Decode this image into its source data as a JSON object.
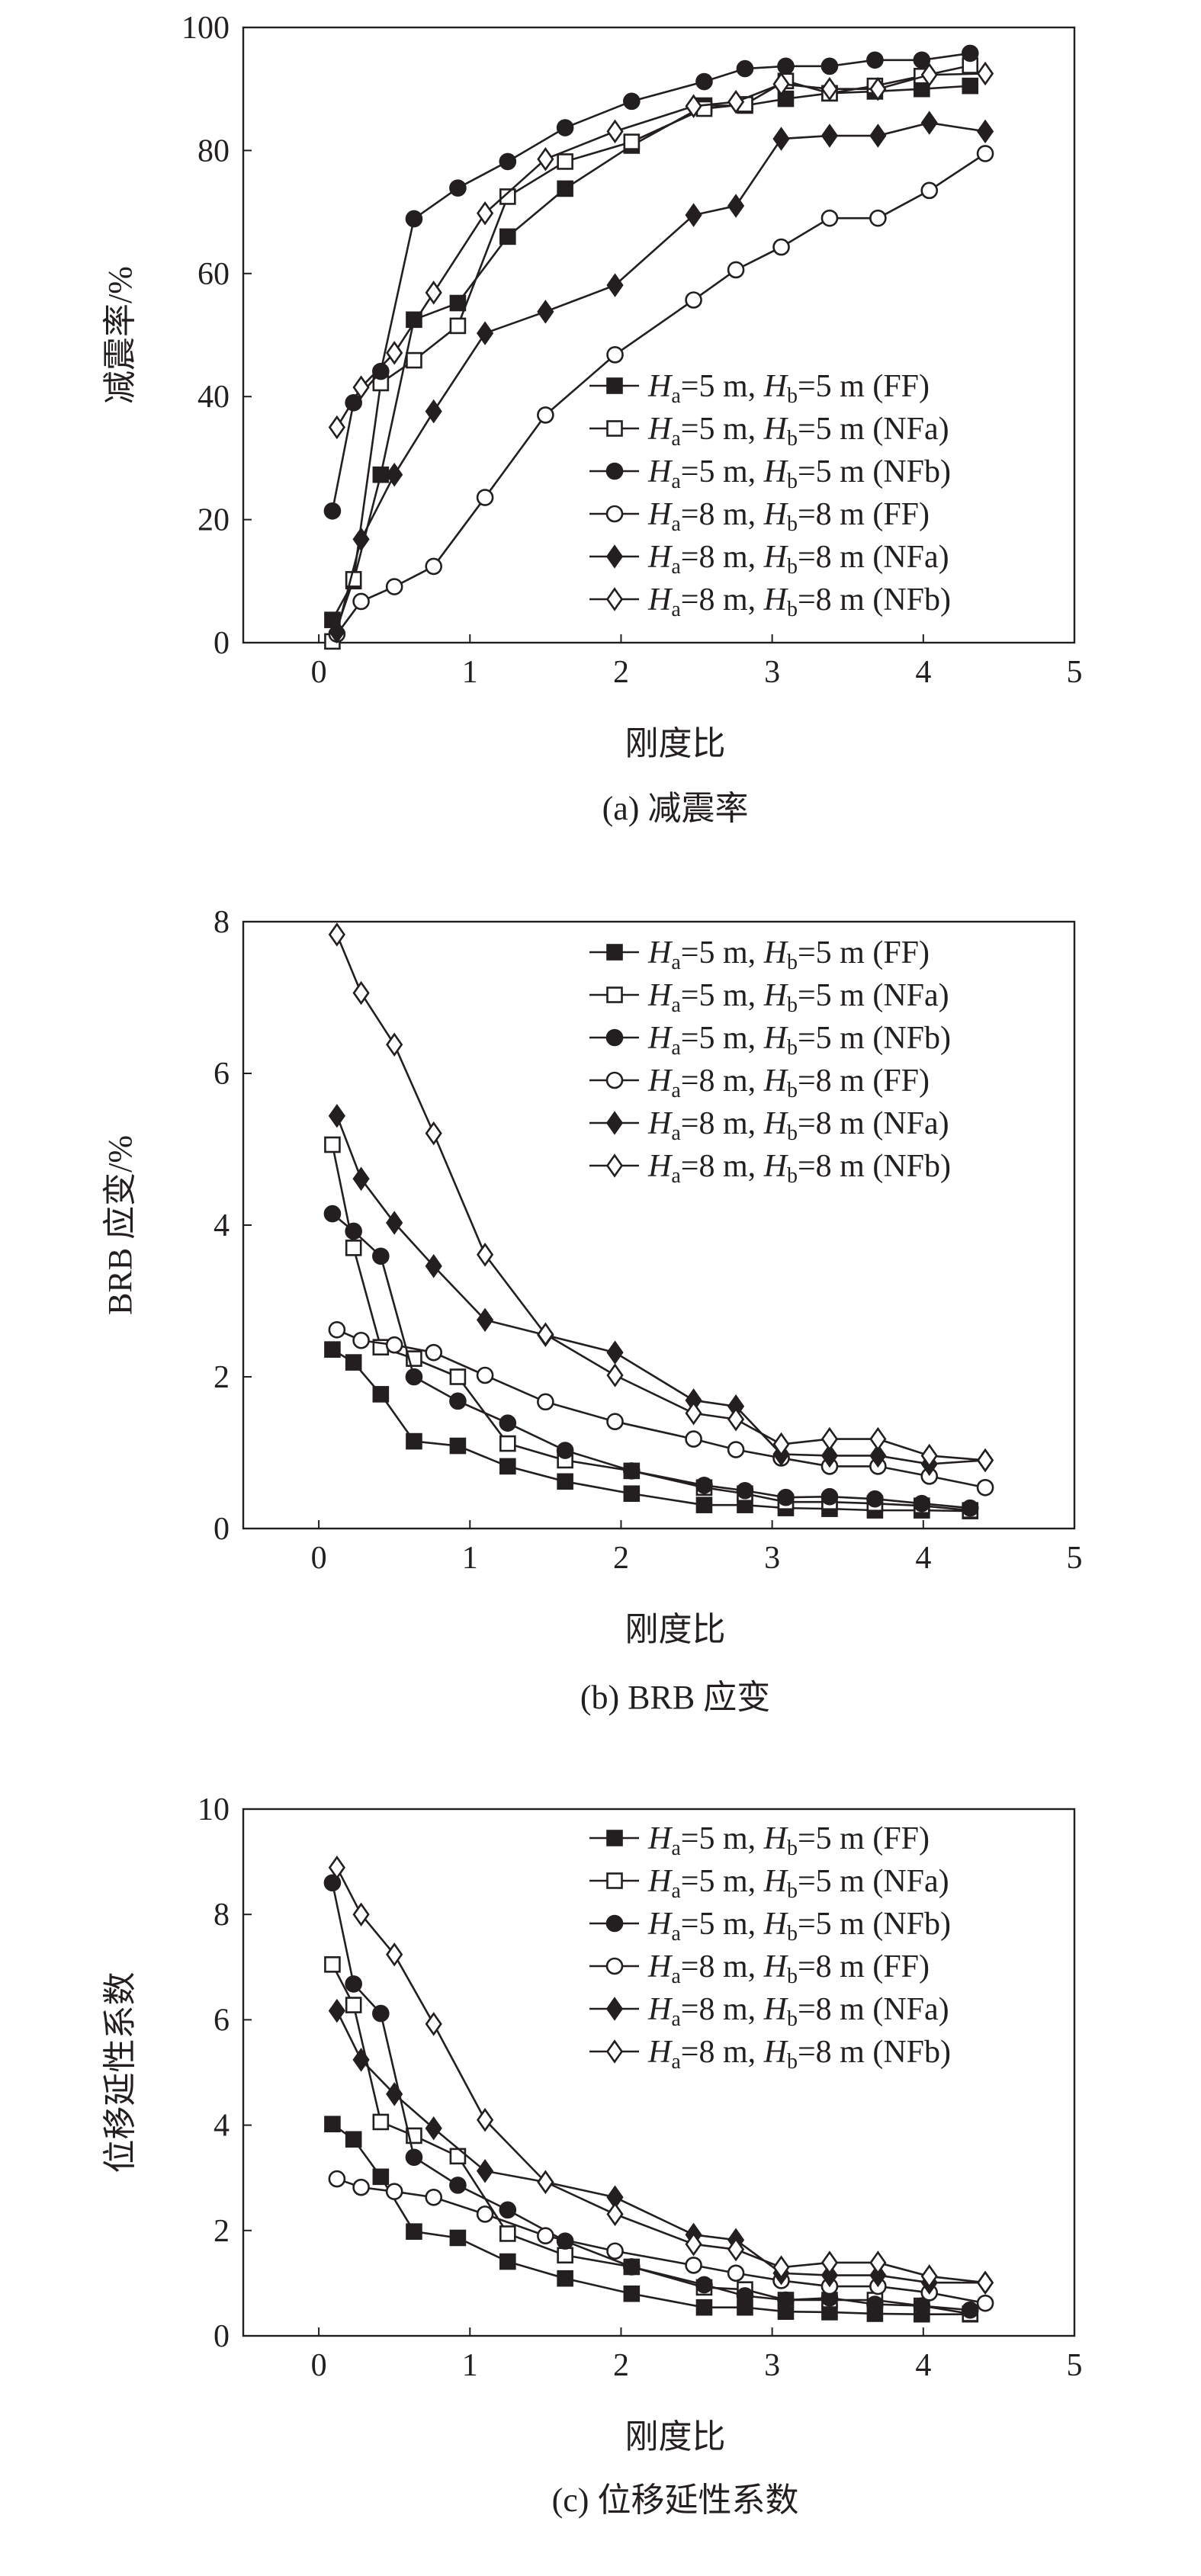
{
  "colors": {
    "ink": "#231f20",
    "background": "#ffffff"
  },
  "legend_labels": [
    "Ha=5 m, Hb=5 m (FF)",
    "Ha=5 m, Hb=5 m (NFa)",
    "Ha=5 m, Hb=5 m (NFb)",
    "Ha=8 m, Hb=8 m (FF)",
    "Ha=8 m, Hb=8 m (NFa)",
    "Ha=8 m, Hb=8 m (NFb)"
  ],
  "chart_data": [
    {
      "type": "line",
      "caption": "(a) 减震率",
      "xlabel": "刚度比",
      "ylabel": "减震率/%",
      "xlim": [
        -0.5,
        5
      ],
      "ylim": [
        0,
        100
      ],
      "xticks": [
        0,
        1,
        2,
        3,
        4,
        5
      ],
      "yticks": [
        0,
        20,
        40,
        60,
        80,
        100
      ],
      "grid": false,
      "legend_position": "bottom-right",
      "x5": [
        0.09,
        0.23,
        0.41,
        0.63,
        0.92,
        1.25,
        1.63,
        2.07,
        2.55,
        2.82,
        3.09,
        3.38,
        3.68,
        3.99,
        4.31
      ],
      "x8": [
        0.12,
        0.28,
        0.5,
        0.76,
        1.1,
        1.5,
        1.96,
        2.48,
        2.76,
        3.06,
        3.38,
        3.7,
        4.04,
        4.41
      ],
      "series": [
        {
          "name": "Ha=5 m, Hb=5 m (FF)",
          "marker": "square-filled",
          "xset": "x5",
          "values": [
            3.7,
            10,
            27.3,
            52.5,
            55.2,
            66,
            73.8,
            80.8,
            87.3,
            87.3,
            88.4,
            89.3,
            89.6,
            90,
            90.5
          ]
        },
        {
          "name": "Ha=5 m, Hb=5 m (NFa)",
          "marker": "square-open",
          "xset": "x5",
          "values": [
            0.2,
            10.3,
            42.2,
            45.9,
            51.5,
            72.5,
            78.2,
            81.4,
            86.8,
            87.5,
            91.3,
            89.3,
            90.5,
            92.1,
            93.8
          ]
        },
        {
          "name": "Ha=5 m, Hb=5 m (NFb)",
          "marker": "circle-filled",
          "xset": "x5",
          "values": [
            21.4,
            39,
            44.1,
            68.9,
            73.9,
            78.2,
            83.7,
            88,
            91.2,
            93.3,
            93.7,
            93.7,
            94.7,
            94.7,
            95.8
          ]
        },
        {
          "name": "Ha=8 m, Hb=8 m (FF)",
          "marker": "circle-open",
          "xset": "x8",
          "values": [
            1.4,
            6.7,
            9.1,
            12.4,
            23.6,
            37,
            46.8,
            55.7,
            60.6,
            64.3,
            69,
            69,
            73.5,
            79.5
          ]
        },
        {
          "name": "Ha=8 m, Hb=8 m (NFa)",
          "marker": "diamond-filled",
          "xset": "x8",
          "values": [
            1.8,
            16.8,
            27.3,
            37.6,
            50.3,
            53.8,
            58.1,
            69.5,
            71,
            81.9,
            82.4,
            82.4,
            84.5,
            83.1
          ]
        },
        {
          "name": "Ha=8 m, Hb=8 m (NFb)",
          "marker": "diamond-open",
          "xset": "x8",
          "values": [
            35,
            41.5,
            47.1,
            56.9,
            69.8,
            78.6,
            83.1,
            87.2,
            87.9,
            90.8,
            90,
            90,
            92.3,
            92.5
          ]
        }
      ]
    },
    {
      "type": "line",
      "caption": "(b) BRB 应变",
      "xlabel": "刚度比",
      "ylabel": "BRB 应变/%",
      "xlim": [
        -0.5,
        5
      ],
      "ylim": [
        0,
        8
      ],
      "xticks": [
        0,
        1,
        2,
        3,
        4,
        5
      ],
      "yticks": [
        0,
        2,
        4,
        6,
        8
      ],
      "grid": false,
      "legend_position": "top-right",
      "x5": [
        0.09,
        0.23,
        0.41,
        0.63,
        0.92,
        1.25,
        1.63,
        2.07,
        2.55,
        2.82,
        3.09,
        3.38,
        3.68,
        3.99,
        4.31
      ],
      "x8": [
        0.12,
        0.28,
        0.5,
        0.76,
        1.1,
        1.5,
        1.96,
        2.48,
        2.76,
        3.06,
        3.38,
        3.7,
        4.04,
        4.41
      ],
      "series": [
        {
          "name": "Ha=5 m, Hb=5 m (FF)",
          "marker": "square-filled",
          "xset": "x5",
          "values": [
            2.36,
            2.19,
            1.77,
            1.15,
            1.09,
            0.82,
            0.62,
            0.46,
            0.31,
            0.31,
            0.27,
            0.26,
            0.24,
            0.24,
            0.23
          ]
        },
        {
          "name": "Ha=5 m, Hb=5 m (NFa)",
          "marker": "square-open",
          "xset": "x5",
          "values": [
            5.06,
            3.7,
            2.39,
            2.24,
            2.0,
            1.12,
            0.9,
            0.76,
            0.54,
            0.46,
            0.35,
            0.35,
            0.33,
            0.3,
            0.24
          ]
        },
        {
          "name": "Ha=5 m, Hb=5 m (NFb)",
          "marker": "circle-filled",
          "xset": "x5",
          "values": [
            4.15,
            3.92,
            3.59,
            2.0,
            1.68,
            1.39,
            1.03,
            0.76,
            0.57,
            0.5,
            0.41,
            0.42,
            0.39,
            0.33,
            0.27
          ]
        },
        {
          "name": "Ha=8 m, Hb=8 m (FF)",
          "marker": "circle-open",
          "xset": "x8",
          "values": [
            2.62,
            2.48,
            2.42,
            2.32,
            2.02,
            1.67,
            1.41,
            1.18,
            1.04,
            0.93,
            0.82,
            0.82,
            0.69,
            0.54
          ]
        },
        {
          "name": "Ha=8 m, Hb=8 m (NFa)",
          "marker": "diamond-filled",
          "xset": "x8",
          "values": [
            5.44,
            4.61,
            4.03,
            3.46,
            2.75,
            2.55,
            2.32,
            1.69,
            1.61,
            0.98,
            0.96,
            0.96,
            0.85,
            0.9
          ]
        },
        {
          "name": "Ha=8 m, Hb=8 m (NFb)",
          "marker": "diamond-open",
          "xset": "x8",
          "values": [
            7.83,
            7.06,
            6.38,
            5.21,
            3.61,
            2.56,
            2.02,
            1.52,
            1.44,
            1.11,
            1.18,
            1.18,
            0.96,
            0.9
          ]
        }
      ]
    },
    {
      "type": "line",
      "caption": "(c) 位移延性系数",
      "xlabel": "刚度比",
      "ylabel": "位移延性系数",
      "xlim": [
        -0.5,
        5
      ],
      "ylim": [
        0,
        10
      ],
      "xticks": [
        0,
        1,
        2,
        3,
        4,
        5
      ],
      "yticks": [
        0,
        2,
        4,
        6,
        8,
        10
      ],
      "grid": false,
      "legend_position": "top-right",
      "x5": [
        0.09,
        0.23,
        0.41,
        0.63,
        0.92,
        1.25,
        1.63,
        2.07,
        2.55,
        2.82,
        3.09,
        3.38,
        3.68,
        3.99,
        4.31
      ],
      "x8": [
        0.12,
        0.28,
        0.5,
        0.76,
        1.1,
        1.5,
        1.96,
        2.48,
        2.76,
        3.06,
        3.38,
        3.7,
        4.04,
        4.41
      ],
      "series": [
        {
          "name": "Ha=5 m, Hb=5 m (FF)",
          "marker": "square-filled",
          "xset": "x5",
          "values": [
            4.02,
            3.73,
            3.02,
            1.98,
            1.86,
            1.41,
            1.09,
            0.8,
            0.54,
            0.54,
            0.46,
            0.45,
            0.42,
            0.41,
            0.41
          ]
        },
        {
          "name": "Ha=5 m, Hb=5 m (NFa)",
          "marker": "square-open",
          "xset": "x5",
          "values": [
            7.05,
            6.28,
            4.06,
            3.8,
            3.41,
            1.94,
            1.53,
            1.31,
            0.92,
            0.88,
            0.68,
            0.68,
            0.68,
            0.57,
            0.42
          ]
        },
        {
          "name": "Ha=5 m, Hb=5 m (NFb)",
          "marker": "circle-filled",
          "xset": "x5",
          "values": [
            8.6,
            6.68,
            6.12,
            3.39,
            2.86,
            2.39,
            1.8,
            1.31,
            0.97,
            0.76,
            0.68,
            0.72,
            0.6,
            0.57,
            0.49
          ]
        },
        {
          "name": "Ha=8 m, Hb=8 m (FF)",
          "marker": "circle-open",
          "xset": "x8",
          "values": [
            2.98,
            2.82,
            2.74,
            2.63,
            2.31,
            1.9,
            1.61,
            1.34,
            1.19,
            1.05,
            0.94,
            0.94,
            0.82,
            0.62
          ]
        },
        {
          "name": "Ha=8 m, Hb=8 m (NFa)",
          "marker": "diamond-filled",
          "xset": "x8",
          "values": [
            6.17,
            5.24,
            4.59,
            3.94,
            3.13,
            2.92,
            2.63,
            1.92,
            1.82,
            1.19,
            1.15,
            1.15,
            1.01,
            1.01
          ]
        },
        {
          "name": "Ha=8 m, Hb=8 m (NFb)",
          "marker": "diamond-open",
          "xset": "x8",
          "values": [
            8.89,
            8.0,
            7.24,
            5.92,
            4.1,
            2.92,
            2.31,
            1.74,
            1.64,
            1.3,
            1.39,
            1.39,
            1.13,
            1.01
          ]
        }
      ]
    }
  ]
}
